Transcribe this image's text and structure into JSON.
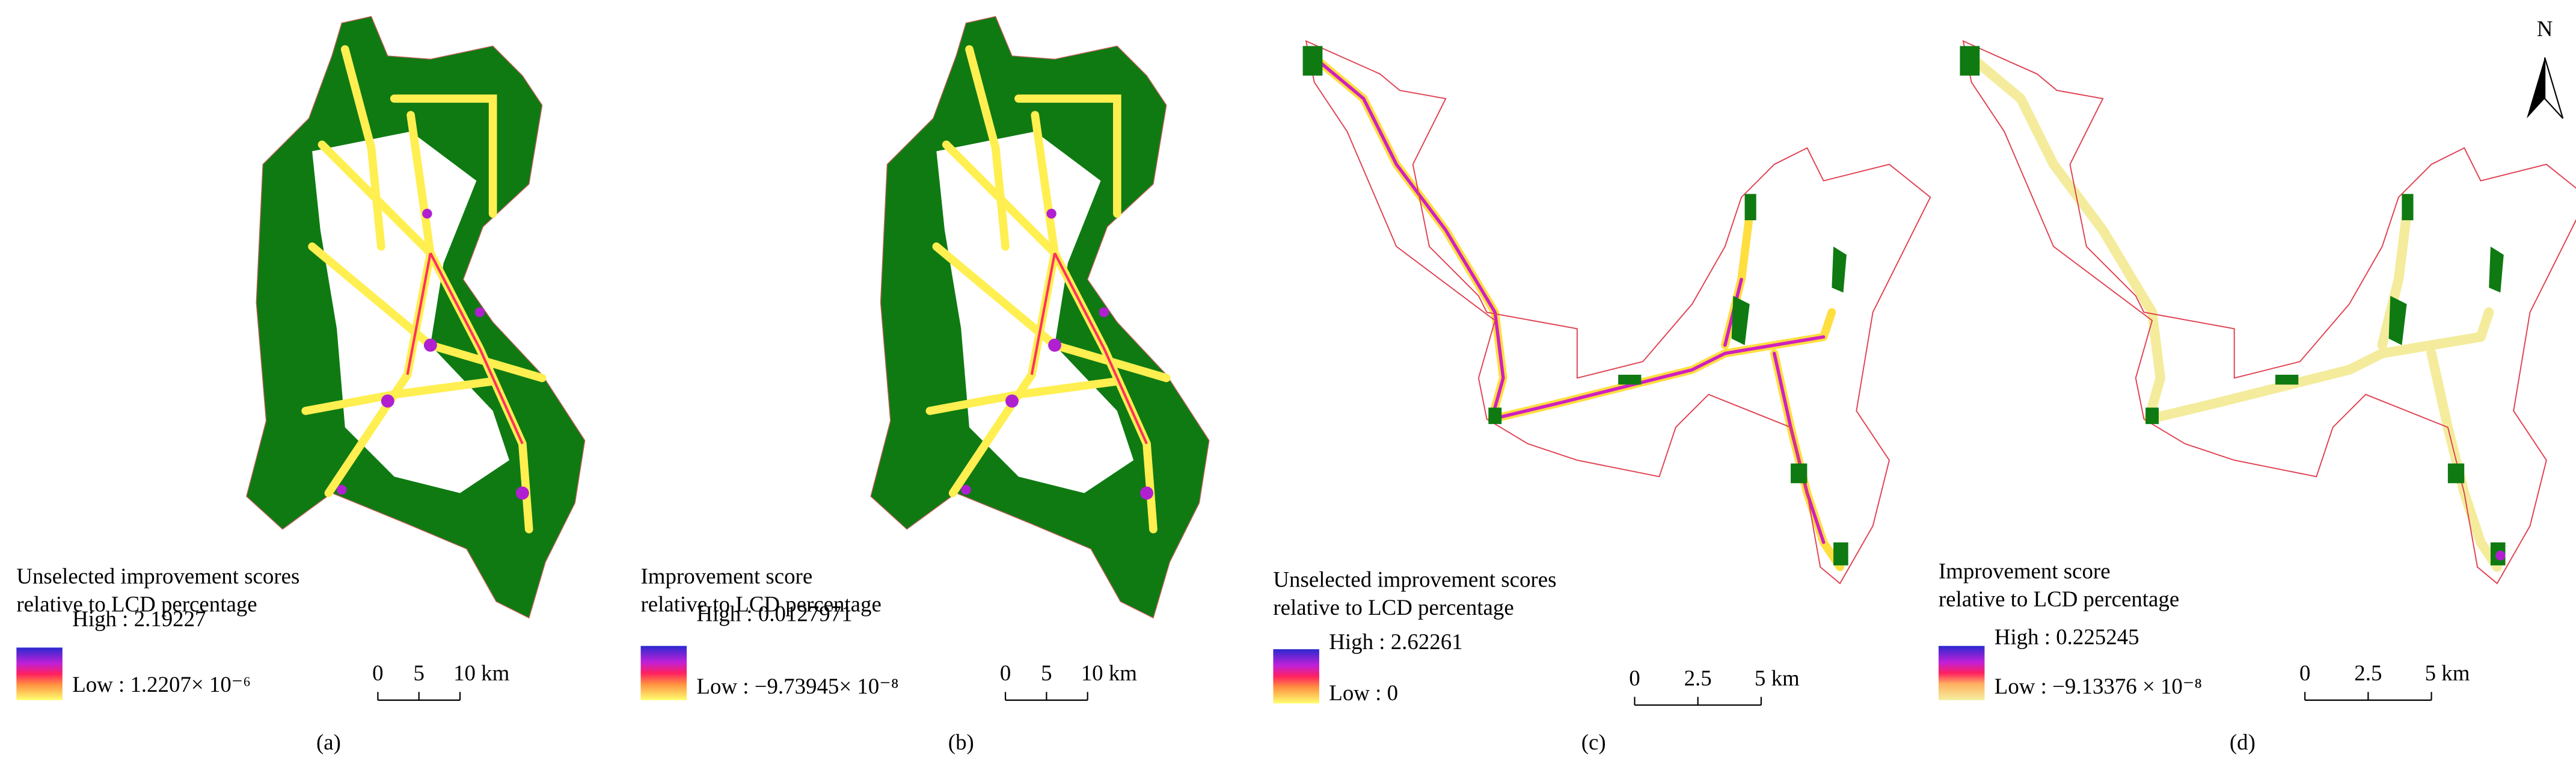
{
  "north": "N",
  "panels": [
    {
      "label": "(a)",
      "legend_title": [
        "Unselected improvement scores",
        "relative to LCD percentage"
      ],
      "high": "High : 2.19227",
      "low": "Low : 1.2207× 10⁻⁶",
      "scale": [
        "0",
        "5",
        "10 km"
      ]
    },
    {
      "label": "(b)",
      "legend_title": [
        "Improvement score",
        "relative to LCD percentage"
      ],
      "high": "High : 0.0127971",
      "low": "Low : −9.73945× 10⁻⁸",
      "scale": [
        "0",
        "5",
        "10 km"
      ]
    },
    {
      "label": "(c)",
      "legend_title": [
        "Unselected improvement scores",
        "relative to LCD percentage"
      ],
      "high": "High : 2.62261",
      "low": "Low : 0",
      "scale": [
        "0",
        "2.5",
        "5 km"
      ]
    },
    {
      "label": "(d)",
      "legend_title": [
        "Improvement score",
        "relative to LCD percentage"
      ],
      "high": "High : 0.225245",
      "low": "Low : −9.13376 × 10⁻⁸",
      "scale": [
        "0",
        "2.5",
        "5 km"
      ]
    }
  ]
}
